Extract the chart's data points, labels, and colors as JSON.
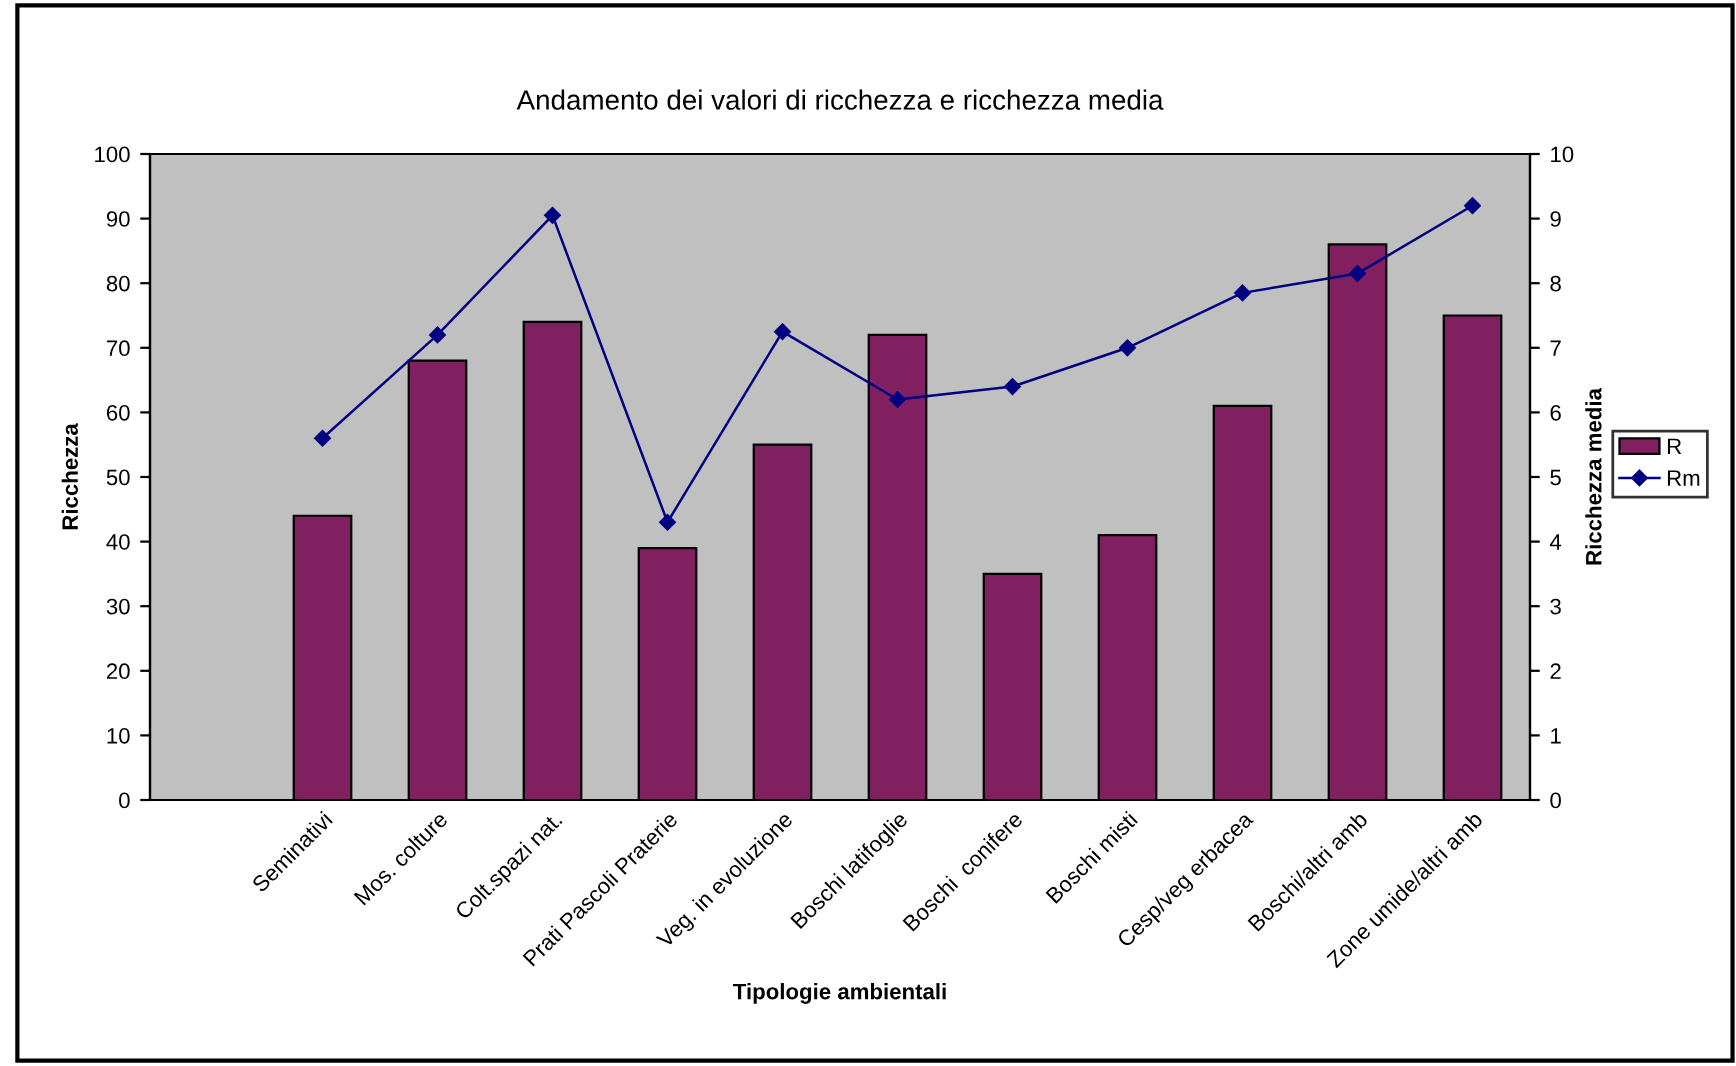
{
  "chart_data": {
    "type": "bar",
    "title": "Andamento dei valori di ricchezza e ricchezza media",
    "xlabel": "Tipologie ambientali",
    "ylabel": "Ricchezza",
    "y2label": "Ricchezza media",
    "categories": [
      null,
      "Seminativi",
      "Mos. colture",
      "Colt.spazi nat.",
      "Prati Pascoli Praterie",
      "Veg. in evoluzione",
      "Boschi latifoglie",
      "Boschi  conifere",
      "Boschi misti",
      "Cesp/veg erbacea",
      "Boschi/altri amb",
      "Zone umide/altri amb"
    ],
    "series": [
      {
        "name": "R",
        "color": "#802060",
        "values": [
          null,
          44,
          68,
          74,
          39,
          55,
          72,
          35,
          41,
          61,
          86,
          75
        ]
      },
      {
        "name": "Rm",
        "type": "line",
        "axis": "y2",
        "color": "#000080",
        "marker": "diamond",
        "values": [
          null,
          5.6,
          7.2,
          9.05,
          4.3,
          7.25,
          6.2,
          6.4,
          7.0,
          7.85,
          8.15,
          9.2
        ]
      }
    ],
    "ylim": [
      0,
      100
    ],
    "yticks": [
      0,
      10,
      20,
      30,
      40,
      50,
      60,
      70,
      80,
      90,
      100
    ],
    "y2lim": [
      0,
      10
    ],
    "y2ticks": [
      0,
      1,
      2,
      3,
      4,
      5,
      6,
      7,
      8,
      9,
      10
    ],
    "grid": false,
    "legend": "right"
  }
}
